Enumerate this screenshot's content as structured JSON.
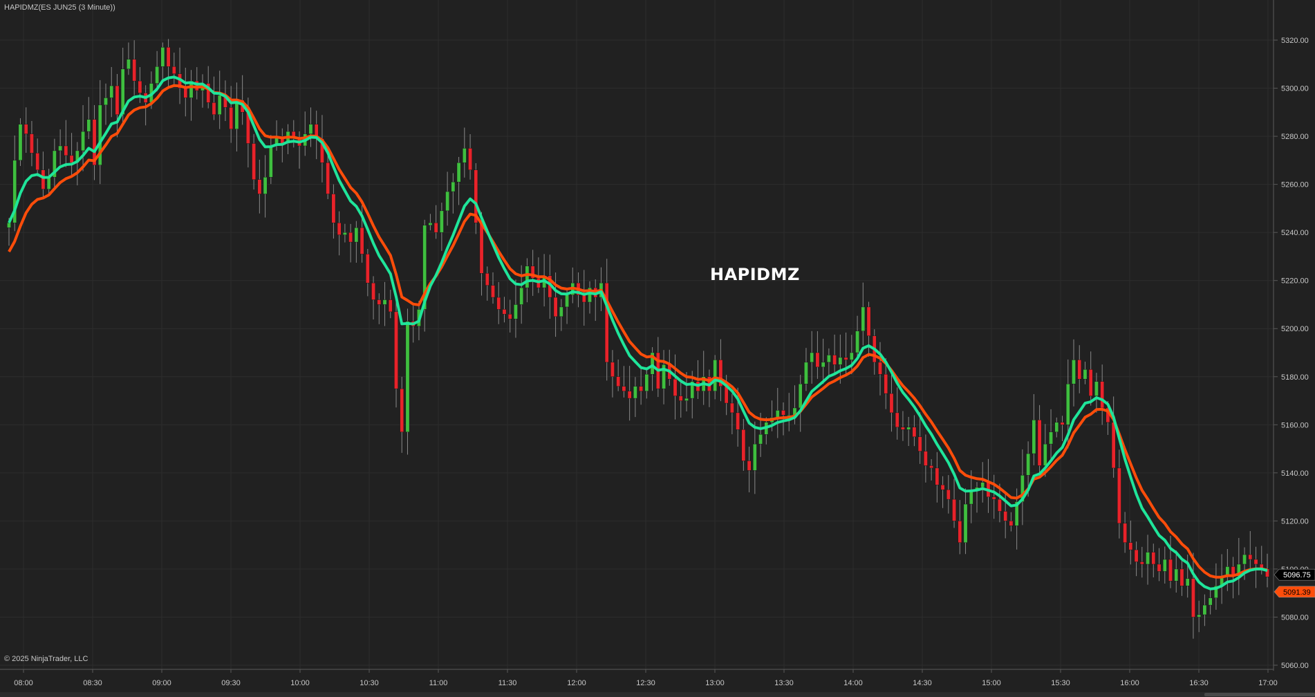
{
  "header": {
    "instrument_label": "HAPIDMZ(ES JUN25 (3 Minute))"
  },
  "watermark": {
    "text": "HAPIDMZ"
  },
  "footer": {
    "copyright": "© 2025 NinjaTrader, LLC"
  },
  "colors": {
    "background": "#212121",
    "up_candle": "#3fbf3f",
    "down_candle": "#e8232a",
    "fast_ma": "#1fe59a",
    "slow_ma": "#ff4d0a",
    "grid": "#2d2d2d",
    "axis_text": "#c8c8c8"
  },
  "chart_data": {
    "type": "candlestick",
    "title": "HAPIDMZ(ES JUN25 (3 Minute))",
    "xlabel": "",
    "ylabel": "",
    "ylim": [
      5060,
      5325
    ],
    "grid": true,
    "x_ticks": [
      "08:00",
      "08:30",
      "09:00",
      "09:30",
      "10:00",
      "10:30",
      "11:00",
      "11:30",
      "12:00",
      "12:30",
      "13:00",
      "13:30",
      "14:00",
      "14:30",
      "15:00",
      "15:30",
      "16:00",
      "16:30",
      "17:00"
    ],
    "y_ticks": [
      "5060.00",
      "5080.00",
      "5100.00",
      "5120.00",
      "5140.00",
      "5160.00",
      "5180.00",
      "5200.00",
      "5220.00",
      "5240.00",
      "5260.00",
      "5280.00",
      "5300.00",
      "5320.00"
    ],
    "last_price_labels": [
      "5096.75",
      "5091.39"
    ],
    "closes": [
      5244,
      5270,
      5285,
      5281,
      5273,
      5266,
      5258,
      5263,
      5274,
      5276,
      5272,
      5269,
      5274,
      5282,
      5287,
      5268,
      5293,
      5296,
      5301,
      5289,
      5308,
      5312,
      5303,
      5298,
      5294,
      5302,
      5309,
      5317,
      5309,
      5306,
      5300,
      5296,
      5303,
      5299,
      5302,
      5294,
      5289,
      5297,
      5292,
      5283,
      5295,
      5290,
      5277,
      5262,
      5256,
      5263,
      5276,
      5280,
      5277,
      5282,
      5279,
      5276,
      5281,
      5285,
      5279,
      5269,
      5256,
      5244,
      5239,
      5240,
      5236,
      5242,
      5231,
      5219,
      5212,
      5210,
      5212,
      5207,
      5175,
      5157,
      5203,
      5201,
      5208,
      5243,
      5244,
      5240,
      5249,
      5257,
      5261,
      5269,
      5275,
      5266,
      5244,
      5223,
      5218,
      5213,
      5208,
      5206,
      5204,
      5210,
      5217,
      5226,
      5221,
      5217,
      5222,
      5213,
      5205,
      5209,
      5214,
      5219,
      5214,
      5211,
      5217,
      5213,
      5219,
      5186,
      5180,
      5176,
      5174,
      5171,
      5176,
      5174,
      5181,
      5190,
      5175,
      5185,
      5179,
      5172,
      5170,
      5171,
      5178,
      5174,
      5180,
      5174,
      5187,
      5176,
      5169,
      5165,
      5158,
      5145,
      5141,
      5152,
      5156,
      5161,
      5163,
      5166,
      5164,
      5164,
      5167,
      5177,
      5186,
      5190,
      5184,
      5186,
      5189,
      5185,
      5188,
      5187,
      5190,
      5199,
      5209,
      5197,
      5186,
      5181,
      5173,
      5165,
      5159,
      5158,
      5159,
      5155,
      5149,
      5143,
      5142,
      5135,
      5133,
      5129,
      5120,
      5111,
      5127,
      5133,
      5134,
      5136,
      5130,
      5129,
      5124,
      5120,
      5118,
      5128,
      5139,
      5148,
      5162,
      5143,
      5152,
      5157,
      5161,
      5160,
      5177,
      5187,
      5179,
      5183,
      5172,
      5178,
      5167,
      5161,
      5142,
      5119,
      5111,
      5108,
      5103,
      5102,
      5107,
      5102,
      5099,
      5104,
      5095,
      5100,
      5093,
      5096,
      5080,
      5081,
      5085,
      5088,
      5093,
      5097,
      5101,
      5097,
      5102,
      5106,
      5104,
      5102,
      5100,
      5096.75
    ]
  }
}
